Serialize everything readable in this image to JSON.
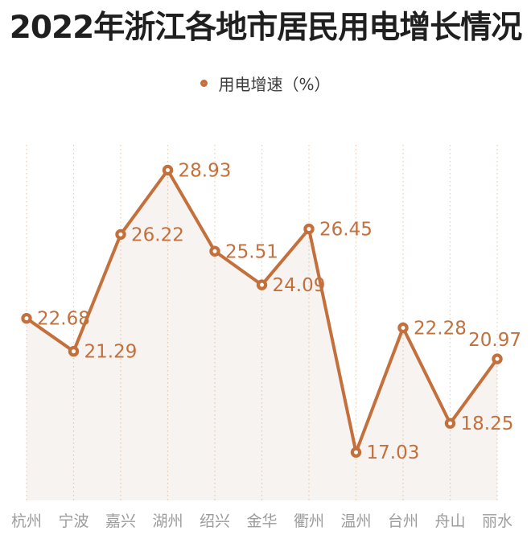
{
  "chart_data": {
    "type": "line",
    "title": "2022年浙江各地市居民用电增长情况",
    "categories": [
      "杭州",
      "宁波",
      "嘉兴",
      "湖州",
      "绍兴",
      "金华",
      "衢州",
      "温州",
      "台州",
      "舟山",
      "丽水"
    ],
    "series": [
      {
        "name": "用电增速（%）",
        "values": [
          22.68,
          21.29,
          26.22,
          28.93,
          25.51,
          24.09,
          26.45,
          17.03,
          22.28,
          18.25,
          20.97
        ]
      }
    ],
    "data_labels": [
      "22.68",
      "21.29",
      "26.22",
      "28.93",
      "25.51",
      "24.09",
      "26.45",
      "17.03",
      "22.28",
      "18.25",
      "20.97"
    ],
    "label_placement": {
      "default": "right",
      "overrides": {
        "10": "above"
      }
    },
    "xlabel": "",
    "ylabel": "",
    "ylim": [
      15,
      30
    ],
    "grid": "vertical-dotted",
    "legend_position": "top-center",
    "marker": "ring",
    "area_fill": true,
    "colors": {
      "line": "#c3703c",
      "marker_stroke": "#c3703c",
      "marker_fill": "#ffffff",
      "data_label": "#c3703c",
      "gridline": "#edd0b5",
      "area": "rgba(168,124,88,0.09)",
      "axis_label": "#9c9c9c",
      "legend_text": "#3d3d3d",
      "title": "#1f1f1f",
      "background": "#ffffff"
    }
  }
}
